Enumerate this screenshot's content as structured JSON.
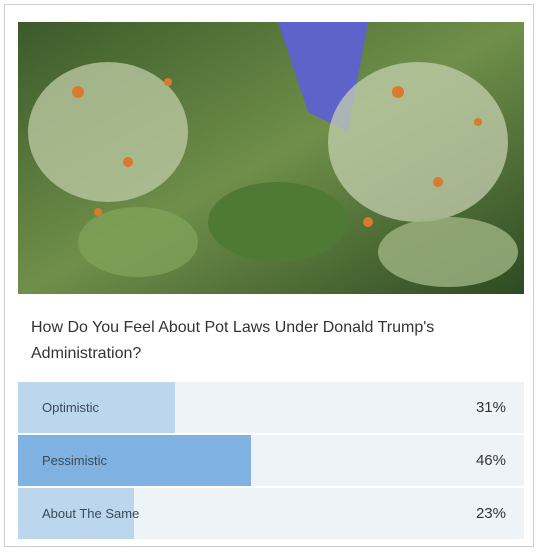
{
  "poll": {
    "question": "How Do You Feel About Pot Laws Under Donald Trump's Administration?",
    "options": [
      "Optimistic",
      "Pessimistic",
      "About The Same"
    ],
    "values": [
      31,
      46,
      23
    ],
    "value_labels": [
      "31%",
      "46%",
      "23%"
    ]
  }
}
